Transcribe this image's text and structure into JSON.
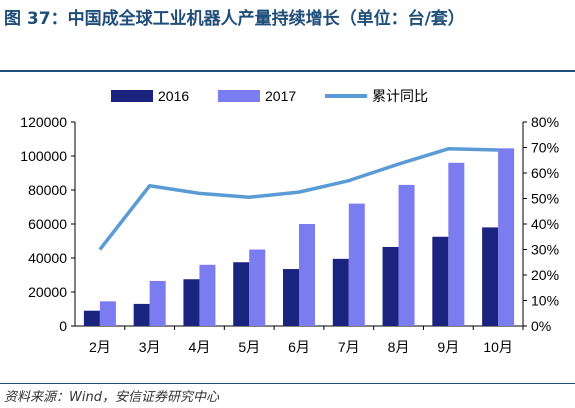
{
  "title": "图 37：中国成全球工业机器人产量持续增长（单位：台/套）",
  "source": "资料来源：Wind，安信证券研究中心",
  "colors": {
    "s2016": "#1a237e",
    "s2017": "#7b7cf0",
    "ratio": "#5b9bd5",
    "frame": "#1f4e79"
  },
  "chart_data": {
    "type": "bar",
    "categories": [
      "2月",
      "3月",
      "4月",
      "5月",
      "6月",
      "7月",
      "8月",
      "9月",
      "10月"
    ],
    "series": [
      {
        "name": "2016",
        "type": "bar",
        "axis": "left",
        "values": [
          9000,
          13000,
          27500,
          37500,
          33500,
          39500,
          46500,
          52500,
          58000
        ]
      },
      {
        "name": "2017",
        "type": "bar",
        "axis": "left",
        "values": [
          14500,
          26500,
          36000,
          45000,
          60000,
          72000,
          83000,
          96000,
          104500
        ]
      },
      {
        "name": "累计同比",
        "type": "line",
        "axis": "right",
        "values": [
          30,
          55,
          52,
          50.5,
          52.5,
          57,
          63.5,
          69.5,
          69
        ]
      }
    ],
    "ylim": [
      0,
      120000
    ],
    "yticks": [
      "0",
      "20000",
      "40000",
      "60000",
      "80000",
      "100000",
      "120000"
    ],
    "y2lim": [
      0,
      80
    ],
    "y2ticks": [
      "0%",
      "10%",
      "20%",
      "30%",
      "40%",
      "50%",
      "60%",
      "70%",
      "80%"
    ],
    "legend_position": "top"
  }
}
